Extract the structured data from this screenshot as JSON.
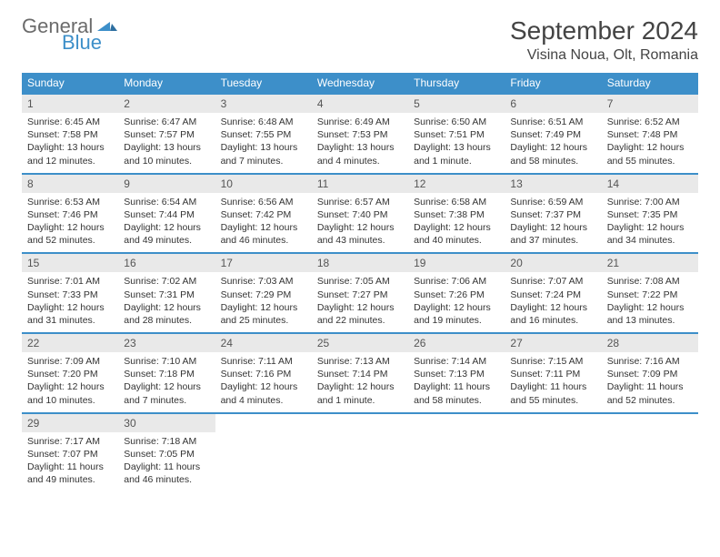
{
  "logo": {
    "general": "General",
    "blue": "Blue"
  },
  "title": "September 2024",
  "location": "Visina Noua, Olt, Romania",
  "colors": {
    "header_bg": "#3d8fc9",
    "header_text": "#ffffff",
    "daynum_bg": "#e9e9e9",
    "row_border": "#3d8fc9",
    "body_text": "#333333",
    "logo_gray": "#6b6b6b",
    "logo_blue": "#3d8fc9"
  },
  "weekdays": [
    "Sunday",
    "Monday",
    "Tuesday",
    "Wednesday",
    "Thursday",
    "Friday",
    "Saturday"
  ],
  "weeks": [
    [
      {
        "n": "1",
        "sr": "Sunrise: 6:45 AM",
        "ss": "Sunset: 7:58 PM",
        "dl": "Daylight: 13 hours and 12 minutes."
      },
      {
        "n": "2",
        "sr": "Sunrise: 6:47 AM",
        "ss": "Sunset: 7:57 PM",
        "dl": "Daylight: 13 hours and 10 minutes."
      },
      {
        "n": "3",
        "sr": "Sunrise: 6:48 AM",
        "ss": "Sunset: 7:55 PM",
        "dl": "Daylight: 13 hours and 7 minutes."
      },
      {
        "n": "4",
        "sr": "Sunrise: 6:49 AM",
        "ss": "Sunset: 7:53 PM",
        "dl": "Daylight: 13 hours and 4 minutes."
      },
      {
        "n": "5",
        "sr": "Sunrise: 6:50 AM",
        "ss": "Sunset: 7:51 PM",
        "dl": "Daylight: 13 hours and 1 minute."
      },
      {
        "n": "6",
        "sr": "Sunrise: 6:51 AM",
        "ss": "Sunset: 7:49 PM",
        "dl": "Daylight: 12 hours and 58 minutes."
      },
      {
        "n": "7",
        "sr": "Sunrise: 6:52 AM",
        "ss": "Sunset: 7:48 PM",
        "dl": "Daylight: 12 hours and 55 minutes."
      }
    ],
    [
      {
        "n": "8",
        "sr": "Sunrise: 6:53 AM",
        "ss": "Sunset: 7:46 PM",
        "dl": "Daylight: 12 hours and 52 minutes."
      },
      {
        "n": "9",
        "sr": "Sunrise: 6:54 AM",
        "ss": "Sunset: 7:44 PM",
        "dl": "Daylight: 12 hours and 49 minutes."
      },
      {
        "n": "10",
        "sr": "Sunrise: 6:56 AM",
        "ss": "Sunset: 7:42 PM",
        "dl": "Daylight: 12 hours and 46 minutes."
      },
      {
        "n": "11",
        "sr": "Sunrise: 6:57 AM",
        "ss": "Sunset: 7:40 PM",
        "dl": "Daylight: 12 hours and 43 minutes."
      },
      {
        "n": "12",
        "sr": "Sunrise: 6:58 AM",
        "ss": "Sunset: 7:38 PM",
        "dl": "Daylight: 12 hours and 40 minutes."
      },
      {
        "n": "13",
        "sr": "Sunrise: 6:59 AM",
        "ss": "Sunset: 7:37 PM",
        "dl": "Daylight: 12 hours and 37 minutes."
      },
      {
        "n": "14",
        "sr": "Sunrise: 7:00 AM",
        "ss": "Sunset: 7:35 PM",
        "dl": "Daylight: 12 hours and 34 minutes."
      }
    ],
    [
      {
        "n": "15",
        "sr": "Sunrise: 7:01 AM",
        "ss": "Sunset: 7:33 PM",
        "dl": "Daylight: 12 hours and 31 minutes."
      },
      {
        "n": "16",
        "sr": "Sunrise: 7:02 AM",
        "ss": "Sunset: 7:31 PM",
        "dl": "Daylight: 12 hours and 28 minutes."
      },
      {
        "n": "17",
        "sr": "Sunrise: 7:03 AM",
        "ss": "Sunset: 7:29 PM",
        "dl": "Daylight: 12 hours and 25 minutes."
      },
      {
        "n": "18",
        "sr": "Sunrise: 7:05 AM",
        "ss": "Sunset: 7:27 PM",
        "dl": "Daylight: 12 hours and 22 minutes."
      },
      {
        "n": "19",
        "sr": "Sunrise: 7:06 AM",
        "ss": "Sunset: 7:26 PM",
        "dl": "Daylight: 12 hours and 19 minutes."
      },
      {
        "n": "20",
        "sr": "Sunrise: 7:07 AM",
        "ss": "Sunset: 7:24 PM",
        "dl": "Daylight: 12 hours and 16 minutes."
      },
      {
        "n": "21",
        "sr": "Sunrise: 7:08 AM",
        "ss": "Sunset: 7:22 PM",
        "dl": "Daylight: 12 hours and 13 minutes."
      }
    ],
    [
      {
        "n": "22",
        "sr": "Sunrise: 7:09 AM",
        "ss": "Sunset: 7:20 PM",
        "dl": "Daylight: 12 hours and 10 minutes."
      },
      {
        "n": "23",
        "sr": "Sunrise: 7:10 AM",
        "ss": "Sunset: 7:18 PM",
        "dl": "Daylight: 12 hours and 7 minutes."
      },
      {
        "n": "24",
        "sr": "Sunrise: 7:11 AM",
        "ss": "Sunset: 7:16 PM",
        "dl": "Daylight: 12 hours and 4 minutes."
      },
      {
        "n": "25",
        "sr": "Sunrise: 7:13 AM",
        "ss": "Sunset: 7:14 PM",
        "dl": "Daylight: 12 hours and 1 minute."
      },
      {
        "n": "26",
        "sr": "Sunrise: 7:14 AM",
        "ss": "Sunset: 7:13 PM",
        "dl": "Daylight: 11 hours and 58 minutes."
      },
      {
        "n": "27",
        "sr": "Sunrise: 7:15 AM",
        "ss": "Sunset: 7:11 PM",
        "dl": "Daylight: 11 hours and 55 minutes."
      },
      {
        "n": "28",
        "sr": "Sunrise: 7:16 AM",
        "ss": "Sunset: 7:09 PM",
        "dl": "Daylight: 11 hours and 52 minutes."
      }
    ],
    [
      {
        "n": "29",
        "sr": "Sunrise: 7:17 AM",
        "ss": "Sunset: 7:07 PM",
        "dl": "Daylight: 11 hours and 49 minutes."
      },
      {
        "n": "30",
        "sr": "Sunrise: 7:18 AM",
        "ss": "Sunset: 7:05 PM",
        "dl": "Daylight: 11 hours and 46 minutes."
      },
      null,
      null,
      null,
      null,
      null
    ]
  ]
}
